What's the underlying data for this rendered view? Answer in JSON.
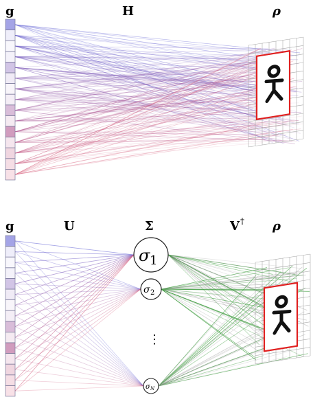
{
  "panel_top": {
    "vector_label": "g",
    "operator_label": "H",
    "image_label": "ρ",
    "vector_cells": 15,
    "grid_rows": 12,
    "grid_cols": 8
  },
  "panel_bottom": {
    "vector_label": "g",
    "u_label": "U",
    "sigma_label": "Σ",
    "v_label": "V",
    "v_sup": "†",
    "image_label": "ρ",
    "sigma_nodes": [
      {
        "base": "σ",
        "sub": "1"
      },
      {
        "base": "σ",
        "sub": "2"
      },
      {
        "base": "σ",
        "sub": "N"
      }
    ],
    "ellipsis": "⋮",
    "vector_cells": 15,
    "grid_rows": 12,
    "grid_cols": 8
  },
  "colors": {
    "blue": "#5a5ad2",
    "red": "#d65a78",
    "green": "#3a9a3a",
    "frame": "#e02020",
    "grid": "#aaaaaa",
    "cell_border": "#7a7a9a"
  }
}
